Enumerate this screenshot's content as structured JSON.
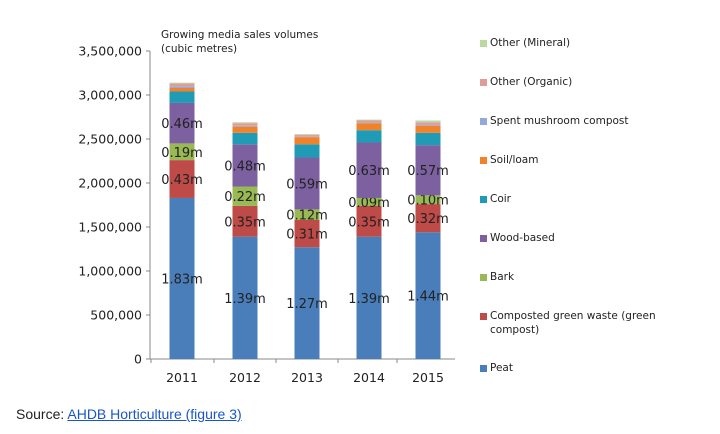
{
  "chart_data": {
    "type": "bar",
    "stacked": true,
    "title": "Growing media sales volumes\n(cubic metres)",
    "categories": [
      "2011",
      "2012",
      "2013",
      "2014",
      "2015"
    ],
    "ylim": [
      0,
      3500000
    ],
    "yticks": [
      0,
      500000,
      1000000,
      1500000,
      2000000,
      2500000,
      3000000,
      3500000
    ],
    "ytick_labels": [
      "0",
      "500,000",
      "1,000,000",
      "1,500,000",
      "2,000,000",
      "2,500,000",
      "3,000,000",
      "3,500,000"
    ],
    "grid": false,
    "legend_position": "right",
    "series": [
      {
        "name": "Peat",
        "color": "#4a7ebb",
        "values": [
          1830000,
          1390000,
          1270000,
          1390000,
          1440000
        ],
        "labels": [
          "1.83m",
          "1.39m",
          "1.27m",
          "1.39m",
          "1.44m"
        ]
      },
      {
        "name": "Composted green waste (green compost)",
        "color": "#be4b48",
        "values": [
          430000,
          350000,
          310000,
          350000,
          320000
        ],
        "labels": [
          "0.43m",
          "0.35m",
          "0.31m",
          "0.35m",
          "0.32m"
        ]
      },
      {
        "name": "Bark",
        "color": "#98b954",
        "values": [
          190000,
          220000,
          120000,
          90000,
          100000
        ],
        "labels": [
          "0.19m",
          "0.22m",
          "0.12m",
          "0.09m",
          "0.10m"
        ]
      },
      {
        "name": "Wood-based",
        "color": "#7d60a0",
        "values": [
          460000,
          480000,
          590000,
          630000,
          570000
        ],
        "labels": [
          "0.46m",
          "0.48m",
          "0.59m",
          "0.63m",
          "0.57m"
        ]
      },
      {
        "name": "Coir",
        "color": "#1f9bb5",
        "values": [
          130000,
          130000,
          150000,
          140000,
          140000
        ]
      },
      {
        "name": "Soil/loam",
        "color": "#f0832a",
        "values": [
          40000,
          70000,
          80000,
          80000,
          80000
        ]
      },
      {
        "name": "Spent mushroom compost",
        "color": "#94a9d6",
        "values": [
          20000,
          10000,
          5000,
          10000,
          10000
        ]
      },
      {
        "name": "Other (Organic)",
        "color": "#e09b9b",
        "values": [
          30000,
          30000,
          20000,
          20000,
          30000
        ]
      },
      {
        "name": "Other (Mineral)",
        "color": "#b9d9a0",
        "values": [
          10000,
          10000,
          10000,
          10000,
          20000
        ]
      }
    ]
  },
  "source": {
    "prefix": "Source: ",
    "link_text": "AHDB Horticulture (figure 3)"
  }
}
